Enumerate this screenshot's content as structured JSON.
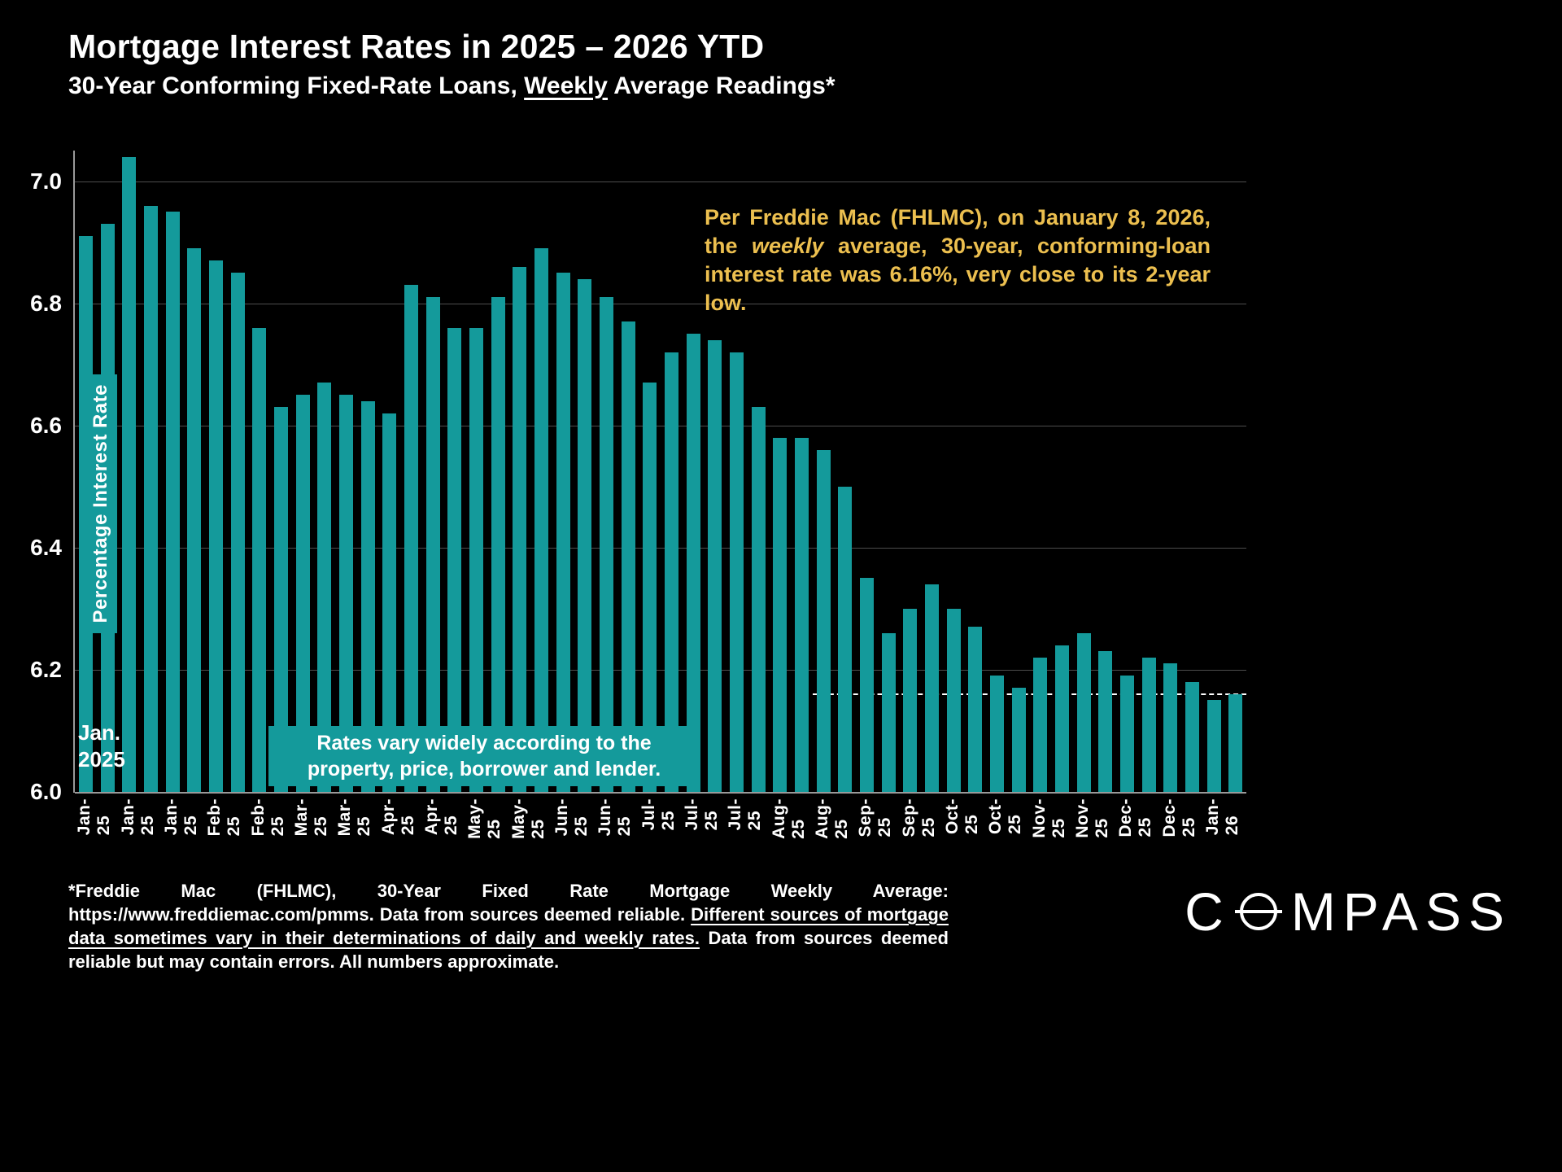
{
  "header": {
    "title": "Mortgage Interest Rates in 2025 – 2026 YTD",
    "subtitle_prefix": "30-Year Conforming Fixed-Rate Loans, ",
    "subtitle_underlined": "Weekly",
    "subtitle_suffix": " Average Readings*"
  },
  "annotation": {
    "part1": "Per Freddie Mac (FHLMC), on January 8, 2026, the ",
    "italic": "weekly",
    "part2": " average, 30-year, conforming-loan interest rate was 6.16%, very close to its 2-year low.",
    "color": "#ecbf4f"
  },
  "callout": {
    "text": "Rates vary widely according to the property, price, borrower and lender."
  },
  "start_label": {
    "line1": "Jan.",
    "line2": "2025"
  },
  "footnote": {
    "part1": "*Freddie Mac (FHLMC), 30-Year Fixed Rate Mortgage Weekly Average:  https://www.freddiemac.com/pmms. Data from sources deemed reliable. ",
    "underlined": "Different sources of mortgage data sometimes vary in their determinations of daily and weekly rates.",
    "part2": " Data from sources deemed reliable but may contain errors. All numbers approximate."
  },
  "brand": {
    "name": "COMPASS",
    "c": "C",
    "rest": "MPASS"
  },
  "chart_data": {
    "type": "bar",
    "title": "Mortgage Interest Rates in 2025 – 2026 YTD",
    "subtitle": "30-Year Conforming Fixed-Rate Loans, Weekly Average Readings*",
    "xlabel": "",
    "ylabel": "Percentage Interest  Rate",
    "ylim": [
      6.0,
      7.05
    ],
    "yticks": [
      6.0,
      6.2,
      6.4,
      6.6,
      6.8,
      7.0
    ],
    "grid": true,
    "legend": "none",
    "bar_color": "#149a9b",
    "grid_color": "#4d4d4d",
    "x_label_every": 2,
    "reference_line": {
      "value": 6.16,
      "start_bar_index": 34,
      "style": "dashed-white"
    },
    "bars": [
      {
        "month": "Jan-25",
        "value": 6.91
      },
      {
        "month": "Jan-25",
        "value": 6.93
      },
      {
        "month": "Jan-25",
        "value": 7.04
      },
      {
        "month": "Jan-25",
        "value": 6.96
      },
      {
        "month": "Jan-25",
        "value": 6.95
      },
      {
        "month": "Feb-25",
        "value": 6.89
      },
      {
        "month": "Feb-25",
        "value": 6.87
      },
      {
        "month": "Feb-25",
        "value": 6.85
      },
      {
        "month": "Feb-25",
        "value": 6.76
      },
      {
        "month": "Mar-25",
        "value": 6.63
      },
      {
        "month": "Mar-25",
        "value": 6.65
      },
      {
        "month": "Mar-25",
        "value": 6.67
      },
      {
        "month": "Mar-25",
        "value": 6.65
      },
      {
        "month": "Apr-25",
        "value": 6.64
      },
      {
        "month": "Apr-25",
        "value": 6.62
      },
      {
        "month": "Apr-25",
        "value": 6.83
      },
      {
        "month": "Apr-25",
        "value": 6.81
      },
      {
        "month": "May-25",
        "value": 6.76
      },
      {
        "month": "May-25",
        "value": 6.76
      },
      {
        "month": "May-25",
        "value": 6.81
      },
      {
        "month": "May-25",
        "value": 6.86
      },
      {
        "month": "May-25",
        "value": 6.89
      },
      {
        "month": "Jun-25",
        "value": 6.85
      },
      {
        "month": "Jun-25",
        "value": 6.84
      },
      {
        "month": "Jun-25",
        "value": 6.81
      },
      {
        "month": "Jun-25",
        "value": 6.77
      },
      {
        "month": "Jul-25",
        "value": 6.67
      },
      {
        "month": "Jul-25",
        "value": 6.72
      },
      {
        "month": "Jul-25",
        "value": 6.75
      },
      {
        "month": "Jul-25",
        "value": 6.74
      },
      {
        "month": "Jul-25",
        "value": 6.72
      },
      {
        "month": "Aug-25",
        "value": 6.63
      },
      {
        "month": "Aug-25",
        "value": 6.58
      },
      {
        "month": "Aug-25",
        "value": 6.58
      },
      {
        "month": "Aug-25",
        "value": 6.56
      },
      {
        "month": "Sep-25",
        "value": 6.5
      },
      {
        "month": "Sep-25",
        "value": 6.35
      },
      {
        "month": "Sep-25",
        "value": 6.26
      },
      {
        "month": "Sep-25",
        "value": 6.3
      },
      {
        "month": "Oct-25",
        "value": 6.34
      },
      {
        "month": "Oct-25",
        "value": 6.3
      },
      {
        "month": "Oct-25",
        "value": 6.27
      },
      {
        "month": "Oct-25",
        "value": 6.19
      },
      {
        "month": "Oct-25",
        "value": 6.17
      },
      {
        "month": "Nov-25",
        "value": 6.22
      },
      {
        "month": "Nov-25",
        "value": 6.24
      },
      {
        "month": "Nov-25",
        "value": 6.26
      },
      {
        "month": "Nov-25",
        "value": 6.23
      },
      {
        "month": "Dec-25",
        "value": 6.19
      },
      {
        "month": "Dec-25",
        "value": 6.22
      },
      {
        "month": "Dec-25",
        "value": 6.21
      },
      {
        "month": "Dec-25",
        "value": 6.18
      },
      {
        "month": "Jan-26",
        "value": 6.15
      },
      {
        "month": "Jan-26",
        "value": 6.16
      }
    ]
  }
}
